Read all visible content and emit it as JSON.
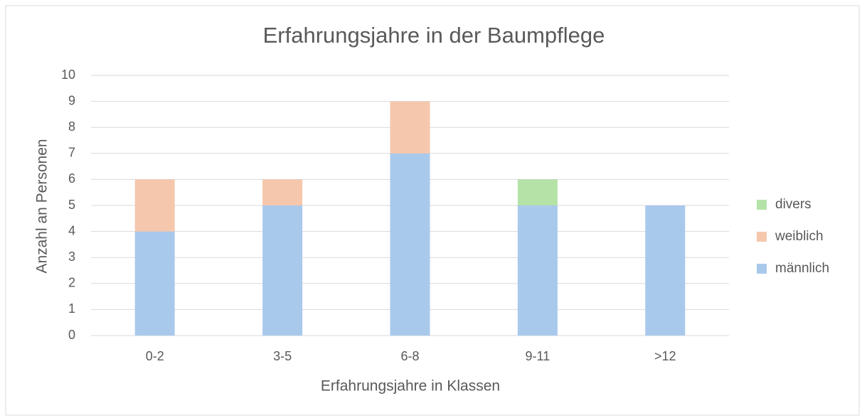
{
  "chart_data": {
    "type": "stacked_bar",
    "title": "Erfahrungsjahre in der Baumpflege",
    "x_label": "Erfahrungsjahre in Klassen",
    "y_label": "Anzahl an Personen",
    "categories": [
      "0-2",
      "3-5",
      "6-8",
      "9-11",
      ">12"
    ],
    "series": [
      {
        "name": "männlich",
        "color": "#a9c9ec",
        "values": [
          4,
          5,
          7,
          5,
          5
        ]
      },
      {
        "name": "weiblich",
        "color": "#f5c7ad",
        "values": [
          2,
          1,
          2,
          0,
          0
        ]
      },
      {
        "name": "divers",
        "color": "#b4e2a7",
        "values": [
          0,
          0,
          0,
          1,
          0
        ]
      }
    ],
    "ylim": [
      0,
      10
    ],
    "yticks": [
      0,
      1,
      2,
      3,
      4,
      5,
      6,
      7,
      8,
      9,
      10
    ],
    "grid": true,
    "legend": "right"
  }
}
